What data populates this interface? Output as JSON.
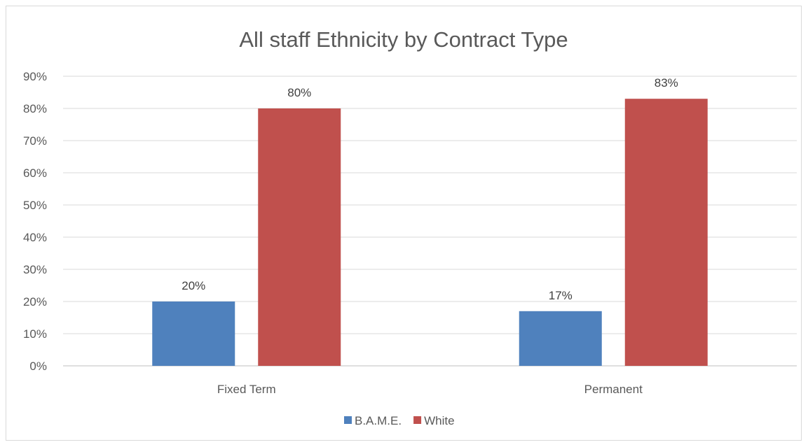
{
  "chart_data": {
    "type": "bar",
    "title": "All staff Ethnicity by Contract Type",
    "categories": [
      "Fixed Term",
      "Permanent"
    ],
    "series": [
      {
        "name": "B.A.M.E.",
        "values": [
          20,
          17
        ],
        "color": "#4f81bd",
        "labels": [
          "20%",
          "17%"
        ]
      },
      {
        "name": "White",
        "values": [
          80,
          83
        ],
        "color": "#c0504d",
        "labels": [
          "80%",
          "83%"
        ]
      }
    ],
    "ylim": [
      0,
      90
    ],
    "yticks": [
      0,
      10,
      20,
      30,
      40,
      50,
      60,
      70,
      80,
      90
    ],
    "ytick_labels": [
      "0%",
      "10%",
      "20%",
      "30%",
      "40%",
      "50%",
      "60%",
      "70%",
      "80%",
      "90%"
    ],
    "grid": true,
    "legend": "bottom",
    "xlabel": "",
    "ylabel": ""
  }
}
